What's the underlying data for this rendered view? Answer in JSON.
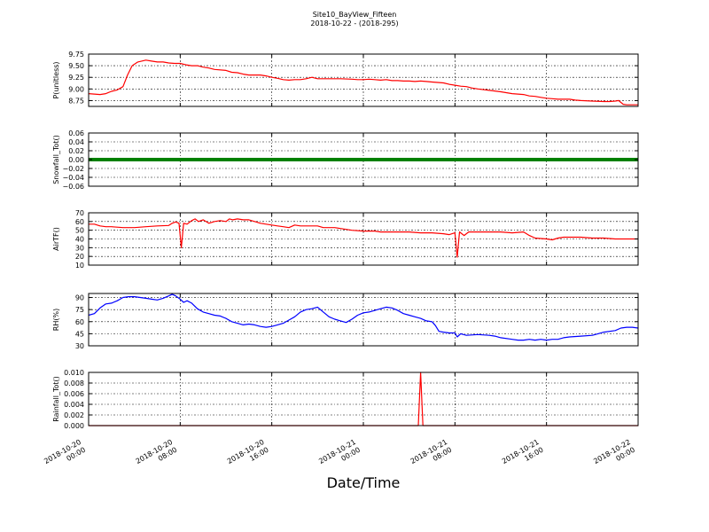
{
  "figure": {
    "title": "Site10_BayView_Fifteen",
    "subtitle": "2018-10-22 - (2018-295)",
    "xlabel": "Date/Time"
  },
  "chart_data": {
    "type": "line",
    "x_ticks": [
      {
        "t": 0,
        "line1": "2018-10-20",
        "line2": "00:00"
      },
      {
        "t": 8,
        "line1": "2018-10-20",
        "line2": "08:00"
      },
      {
        "t": 16,
        "line1": "2018-10-20",
        "line2": "16:00"
      },
      {
        "t": 24,
        "line1": "2018-10-21",
        "line2": "00:00"
      },
      {
        "t": 32,
        "line1": "2018-10-21",
        "line2": "08:00"
      },
      {
        "t": 40,
        "line1": "2018-10-21",
        "line2": "16:00"
      },
      {
        "t": 48,
        "line1": "2018-10-22",
        "line2": "00:00"
      }
    ],
    "panels": [
      {
        "ylabel": "P(unitless)",
        "color": "#ff0000",
        "ylim": [
          8.625,
          9.75
        ],
        "yticks": [
          8.75,
          9.0,
          9.25,
          9.5,
          9.75
        ],
        "yticklabels": [
          "8.75",
          "9.00",
          "9.25",
          "9.50",
          "9.75"
        ],
        "points": [
          [
            0,
            8.9
          ],
          [
            1,
            8.88
          ],
          [
            1.5,
            8.9
          ],
          [
            2,
            8.95
          ],
          [
            2.5,
            8.98
          ],
          [
            3,
            9.05
          ],
          [
            3.4,
            9.3
          ],
          [
            3.8,
            9.5
          ],
          [
            4.3,
            9.58
          ],
          [
            5,
            9.62
          ],
          [
            5.5,
            9.6
          ],
          [
            6,
            9.58
          ],
          [
            6.5,
            9.58
          ],
          [
            7,
            9.56
          ],
          [
            7.5,
            9.55
          ],
          [
            8,
            9.55
          ],
          [
            8.5,
            9.52
          ],
          [
            9,
            9.5
          ],
          [
            9.5,
            9.5
          ],
          [
            10,
            9.47
          ],
          [
            10.5,
            9.45
          ],
          [
            11,
            9.42
          ],
          [
            12,
            9.4
          ],
          [
            12.5,
            9.36
          ],
          [
            13,
            9.35
          ],
          [
            13.5,
            9.32
          ],
          [
            14,
            9.3
          ],
          [
            15,
            9.3
          ],
          [
            15.5,
            9.28
          ],
          [
            16,
            9.25
          ],
          [
            16.5,
            9.23
          ],
          [
            17,
            9.2
          ],
          [
            17.5,
            9.19
          ],
          [
            18,
            9.2
          ],
          [
            18.5,
            9.2
          ],
          [
            19,
            9.22
          ],
          [
            19.5,
            9.25
          ],
          [
            20,
            9.22
          ],
          [
            21,
            9.22
          ],
          [
            22,
            9.22
          ],
          [
            23,
            9.21
          ],
          [
            23.5,
            9.2
          ],
          [
            24,
            9.2
          ],
          [
            24.5,
            9.21
          ],
          [
            25,
            9.2
          ],
          [
            25.5,
            9.19
          ],
          [
            26,
            9.2
          ],
          [
            26.5,
            9.18
          ],
          [
            27,
            9.18
          ],
          [
            27.5,
            9.17
          ],
          [
            28,
            9.17
          ],
          [
            28.5,
            9.16
          ],
          [
            29,
            9.17
          ],
          [
            29.5,
            9.16
          ],
          [
            30,
            9.15
          ],
          [
            30.5,
            9.14
          ],
          [
            31,
            9.13
          ],
          [
            31.5,
            9.1
          ],
          [
            32,
            9.08
          ],
          [
            32.5,
            9.06
          ],
          [
            33,
            9.05
          ],
          [
            33.5,
            9.02
          ],
          [
            34,
            9.0
          ],
          [
            35,
            8.97
          ],
          [
            36,
            8.94
          ],
          [
            37,
            8.9
          ],
          [
            38,
            8.88
          ],
          [
            38.5,
            8.85
          ],
          [
            39,
            8.84
          ],
          [
            39.5,
            8.82
          ],
          [
            40,
            8.8
          ],
          [
            40.5,
            8.79
          ],
          [
            41,
            8.78
          ],
          [
            42,
            8.78
          ],
          [
            42.5,
            8.76
          ],
          [
            43,
            8.75
          ],
          [
            44,
            8.74
          ],
          [
            45,
            8.73
          ],
          [
            45.5,
            8.73
          ],
          [
            46,
            8.74
          ],
          [
            46.3,
            8.75
          ],
          [
            46.7,
            8.67
          ],
          [
            47,
            8.66
          ],
          [
            48,
            8.66
          ]
        ]
      },
      {
        "ylabel": "Snowfall_Tot()",
        "color": "#008000",
        "ylim": [
          -0.06,
          0.06
        ],
        "yticks": [
          -0.06,
          -0.04,
          -0.02,
          0.0,
          0.02,
          0.04,
          0.06
        ],
        "yticklabels": [
          "−0.06",
          "−0.04",
          "−0.02",
          "0.00",
          "0.02",
          "0.04",
          "0.06"
        ],
        "points": [
          [
            0,
            0
          ],
          [
            48,
            0
          ]
        ]
      },
      {
        "ylabel": "AirTF()",
        "color": "#ff0000",
        "ylim": [
          10,
          70
        ],
        "yticks": [
          10,
          20,
          30,
          40,
          50,
          60,
          70
        ],
        "yticklabels": [
          "10",
          "20",
          "30",
          "40",
          "50",
          "60",
          "70"
        ],
        "points": [
          [
            0,
            57
          ],
          [
            0.5,
            57
          ],
          [
            1,
            55
          ],
          [
            1.5,
            54
          ],
          [
            2,
            54
          ],
          [
            3,
            53
          ],
          [
            4,
            53
          ],
          [
            5,
            54
          ],
          [
            6,
            55
          ],
          [
            7,
            55.5
          ],
          [
            7.3,
            58
          ],
          [
            7.6,
            59.5
          ],
          [
            7.9,
            58
          ],
          [
            8.1,
            30
          ],
          [
            8.3,
            58
          ],
          [
            8.6,
            57
          ],
          [
            9,
            61
          ],
          [
            9.3,
            63
          ],
          [
            9.6,
            60
          ],
          [
            10,
            62
          ],
          [
            10.5,
            58
          ],
          [
            11,
            60
          ],
          [
            11.5,
            61
          ],
          [
            12,
            60
          ],
          [
            12.3,
            63
          ],
          [
            12.6,
            62
          ],
          [
            13,
            63
          ],
          [
            13.5,
            62
          ],
          [
            14,
            62
          ],
          [
            14.5,
            60
          ],
          [
            15,
            58
          ],
          [
            16,
            56
          ],
          [
            16.5,
            55
          ],
          [
            17,
            54
          ],
          [
            17.5,
            53
          ],
          [
            18,
            56
          ],
          [
            18.5,
            55
          ],
          [
            19,
            55
          ],
          [
            19.5,
            55
          ],
          [
            20,
            55
          ],
          [
            20.5,
            53
          ],
          [
            21,
            53
          ],
          [
            21.5,
            53
          ],
          [
            22,
            52
          ],
          [
            23,
            50
          ],
          [
            24,
            49
          ],
          [
            25,
            49
          ],
          [
            25.5,
            48
          ],
          [
            26,
            48
          ],
          [
            27,
            48
          ],
          [
            28,
            48
          ],
          [
            29,
            47
          ],
          [
            30,
            47
          ],
          [
            31,
            46
          ],
          [
            31.5,
            45
          ],
          [
            32,
            47
          ],
          [
            32.2,
            19
          ],
          [
            32.4,
            48
          ],
          [
            32.8,
            44
          ],
          [
            33.2,
            48
          ],
          [
            34,
            48
          ],
          [
            35,
            48
          ],
          [
            36,
            48
          ],
          [
            37,
            47
          ],
          [
            38,
            48
          ],
          [
            38.5,
            44
          ],
          [
            39,
            41
          ],
          [
            40,
            40
          ],
          [
            40.5,
            39
          ],
          [
            41,
            41
          ],
          [
            41.5,
            42
          ],
          [
            42,
            42
          ],
          [
            43,
            42
          ],
          [
            44,
            41
          ],
          [
            45,
            41
          ],
          [
            46,
            40
          ],
          [
            47,
            40
          ],
          [
            48,
            40
          ]
        ]
      },
      {
        "ylabel": "RH(%)",
        "color": "#0000ff",
        "ylim": [
          30,
          95
        ],
        "yticks": [
          30,
          45,
          60,
          75,
          90
        ],
        "yticklabels": [
          "30",
          "45",
          "60",
          "75",
          "90"
        ],
        "points": [
          [
            0,
            68
          ],
          [
            0.5,
            70
          ],
          [
            1,
            77
          ],
          [
            1.5,
            82
          ],
          [
            2,
            83
          ],
          [
            2.5,
            86
          ],
          [
            3,
            90
          ],
          [
            3.5,
            91
          ],
          [
            4,
            91
          ],
          [
            4.5,
            90
          ],
          [
            5,
            89
          ],
          [
            5.5,
            88
          ],
          [
            6,
            87
          ],
          [
            6.5,
            89
          ],
          [
            7,
            92
          ],
          [
            7.3,
            94
          ],
          [
            7.6,
            92
          ],
          [
            8,
            88
          ],
          [
            8.3,
            84
          ],
          [
            8.6,
            86
          ],
          [
            9,
            83
          ],
          [
            9.5,
            76
          ],
          [
            10,
            72
          ],
          [
            10.5,
            70
          ],
          [
            11,
            68
          ],
          [
            11.5,
            67
          ],
          [
            12,
            64
          ],
          [
            12.5,
            60
          ],
          [
            13,
            58
          ],
          [
            13.5,
            56
          ],
          [
            14,
            57
          ],
          [
            14.5,
            56
          ],
          [
            15,
            54
          ],
          [
            15.5,
            53
          ],
          [
            16,
            54
          ],
          [
            16.5,
            56
          ],
          [
            17,
            58
          ],
          [
            17.5,
            62
          ],
          [
            18,
            66
          ],
          [
            18.5,
            72
          ],
          [
            19,
            75
          ],
          [
            19.5,
            76
          ],
          [
            20,
            78
          ],
          [
            20.5,
            72
          ],
          [
            21,
            66
          ],
          [
            21.5,
            63
          ],
          [
            22,
            61
          ],
          [
            22.5,
            59
          ],
          [
            23,
            63
          ],
          [
            23.5,
            68
          ],
          [
            24,
            71
          ],
          [
            24.5,
            72
          ],
          [
            25,
            74
          ],
          [
            25.5,
            76
          ],
          [
            26,
            78
          ],
          [
            26.5,
            77
          ],
          [
            27,
            74
          ],
          [
            27.5,
            70
          ],
          [
            28,
            68
          ],
          [
            28.5,
            66
          ],
          [
            29,
            64
          ],
          [
            29.5,
            61
          ],
          [
            30,
            60
          ],
          [
            30.3,
            55
          ],
          [
            30.6,
            48
          ],
          [
            31,
            47
          ],
          [
            31.5,
            46
          ],
          [
            32,
            46
          ],
          [
            32.2,
            41
          ],
          [
            32.5,
            45
          ],
          [
            33,
            43
          ],
          [
            34,
            44
          ],
          [
            35,
            43
          ],
          [
            35.5,
            42
          ],
          [
            36,
            40
          ],
          [
            37,
            38
          ],
          [
            37.5,
            37
          ],
          [
            38,
            37
          ],
          [
            38.5,
            38
          ],
          [
            39,
            37
          ],
          [
            39.5,
            38
          ],
          [
            40,
            37
          ],
          [
            40.5,
            38
          ],
          [
            41,
            38
          ],
          [
            41.5,
            40
          ],
          [
            42,
            41
          ],
          [
            43,
            42
          ],
          [
            44,
            43
          ],
          [
            44.5,
            45
          ],
          [
            45,
            47
          ],
          [
            46,
            49
          ],
          [
            46.5,
            52
          ],
          [
            47,
            53
          ],
          [
            47.5,
            53
          ],
          [
            48,
            52
          ]
        ]
      },
      {
        "ylabel": "Rainfall_Tot()",
        "color": "#ff0000",
        "ylim": [
          0,
          0.01
        ],
        "yticks": [
          0.0,
          0.002,
          0.004,
          0.006,
          0.008,
          0.01
        ],
        "yticklabels": [
          "0.000",
          "0.002",
          "0.004",
          "0.006",
          "0.008",
          "0.010"
        ],
        "points": [
          [
            0,
            0
          ],
          [
            28.8,
            0
          ],
          [
            29.0,
            0.01
          ],
          [
            29.2,
            0
          ],
          [
            48,
            0
          ]
        ]
      }
    ]
  }
}
